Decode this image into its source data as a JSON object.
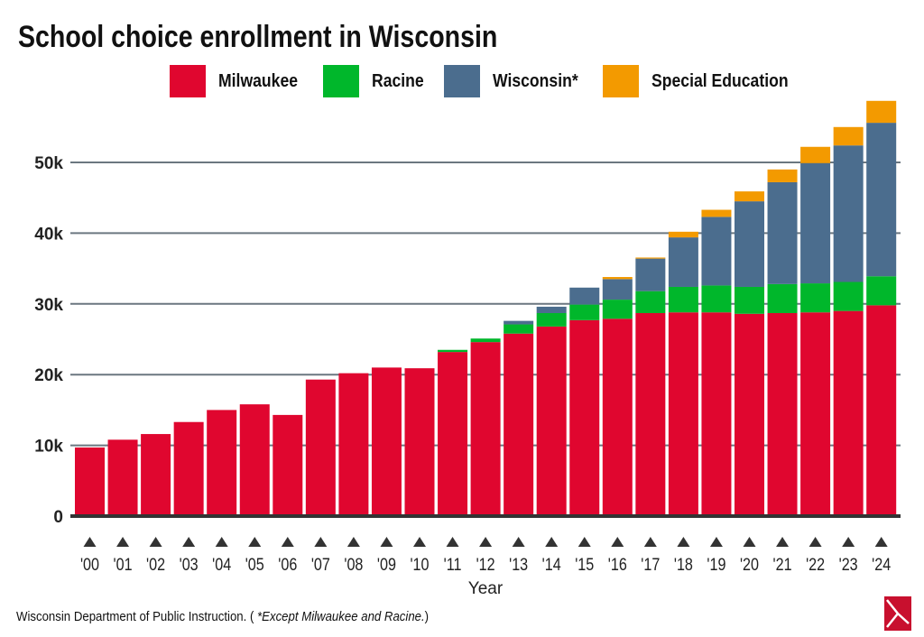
{
  "chart_data": {
    "type": "bar",
    "stacked": true,
    "title": "School choice enrollment in Wisconsin",
    "xlabel": "Year",
    "ylabel": "",
    "ylim": [
      0,
      60000
    ],
    "yticks": [
      0,
      10000,
      20000,
      30000,
      40000,
      50000
    ],
    "ytick_labels": [
      "0",
      "10k",
      "20k",
      "30k",
      "40k",
      "50k"
    ],
    "grid": true,
    "legend_position": "top",
    "categories": [
      "'00",
      "'01",
      "'02",
      "'03",
      "'04",
      "'05",
      "'06",
      "'07",
      "'08",
      "'09",
      "'10",
      "'11",
      "'12",
      "'13",
      "'14",
      "'15",
      "'16",
      "'17",
      "'18",
      "'19",
      "'20",
      "'21",
      "'22",
      "'23",
      "'24"
    ],
    "series": [
      {
        "name": "Milwaukee",
        "color": "#e0062f",
        "values": [
          9700,
          10800,
          11600,
          13300,
          15000,
          15800,
          14300,
          19300,
          20200,
          21000,
          20900,
          23200,
          24600,
          25800,
          26800,
          27700,
          27900,
          28700,
          28800,
          28800,
          28600,
          28700,
          28800,
          29000,
          29800
        ]
      },
      {
        "name": "Racine",
        "color": "#00b72b",
        "values": [
          0,
          0,
          0,
          0,
          0,
          0,
          0,
          0,
          0,
          0,
          0,
          300,
          500,
          1300,
          1900,
          2200,
          2700,
          3100,
          3600,
          3800,
          3800,
          4100,
          4100,
          4100,
          4100
        ]
      },
      {
        "name": "Wisconsin*",
        "color": "#4b6d8e",
        "values": [
          0,
          0,
          0,
          0,
          0,
          0,
          0,
          0,
          0,
          0,
          0,
          0,
          0,
          500,
          900,
          2400,
          2900,
          4600,
          7000,
          9700,
          12100,
          14400,
          17000,
          19300,
          21700
        ]
      },
      {
        "name": "Special Education",
        "color": "#f39a00",
        "values": [
          0,
          0,
          0,
          0,
          0,
          0,
          0,
          0,
          0,
          0,
          0,
          0,
          0,
          0,
          0,
          0,
          300,
          150,
          800,
          1000,
          1400,
          1800,
          2300,
          2600,
          3100
        ]
      }
    ]
  },
  "source": {
    "text": "Wisconsin Department of Public Instruction. ( ",
    "note": "*Except Milwaukee and Racine.",
    "close": ")"
  }
}
